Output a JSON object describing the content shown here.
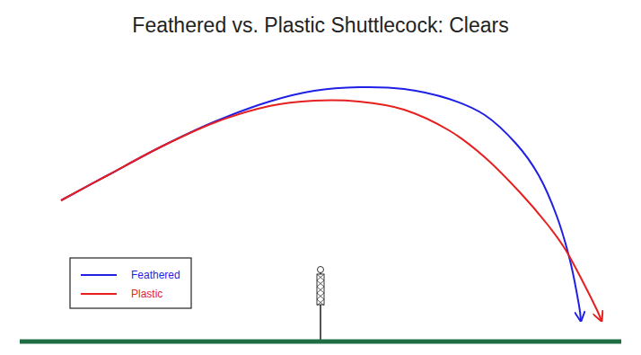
{
  "chart_data": {
    "type": "line",
    "title": "Feathered vs. Plastic Shuttlecock: Clears",
    "xlim": [
      0,
      670
    ],
    "ylim": [
      0,
      300
    ],
    "tick_labels": false,
    "grid": false,
    "legend": "left",
    "series": [
      {
        "name": "Feathered",
        "color": "#1f1fe6",
        "x": [
          46,
          98,
          158,
          218,
          278,
          328,
          378,
          428,
          478,
          518,
          553,
          578,
          598,
          613,
          623,
          625
        ],
        "values": [
          157,
          185,
          217,
          245,
          267,
          279,
          283,
          281,
          270,
          252,
          220,
          185,
          140,
          90,
          40,
          23
        ]
      },
      {
        "name": "Plastic",
        "color": "#e61f1f",
        "x": [
          46,
          98,
          158,
          218,
          278,
          328,
          378,
          428,
          478,
          518,
          558,
          588,
          608,
          628,
          643,
          648
        ],
        "values": [
          157,
          185,
          217,
          244,
          262,
          268,
          267,
          258,
          235,
          205,
          165,
          130,
          102,
          65,
          35,
          23
        ]
      }
    ]
  }
}
